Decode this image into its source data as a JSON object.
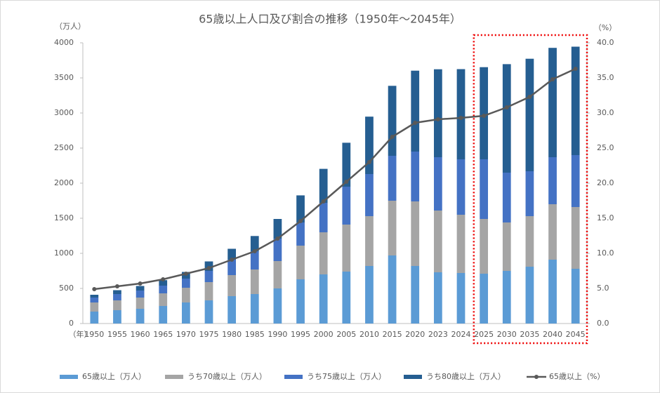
{
  "chart_data": {
    "type": "stacked_bar_line",
    "title": "65歳以上人口及び割合の推移（1950年～2045年）",
    "y_label": "（万人）",
    "y2_label": "（%）",
    "x_label": "（年）",
    "categories": [
      "1950",
      "1955",
      "1960",
      "1965",
      "1970",
      "1975",
      "1980",
      "1985",
      "1990",
      "1995",
      "2000",
      "2005",
      "2010",
      "2015",
      "2020",
      "2023",
      "2024",
      "2025",
      "2030",
      "2035",
      "2040",
      "2045"
    ],
    "ylim": [
      0,
      4000
    ],
    "yticks": [
      0,
      500,
      1000,
      1500,
      2000,
      2500,
      3000,
      3500,
      4000
    ],
    "y2lim": [
      0,
      40
    ],
    "y2ticks": [
      {
        "value": 0,
        "label": "0.0"
      },
      {
        "value": 5,
        "label": "5.0"
      },
      {
        "value": 10,
        "label": "10.0"
      },
      {
        "value": 15,
        "label": "15.0"
      },
      {
        "value": 20,
        "label": "20.0"
      },
      {
        "value": 25,
        "label": "25.0"
      },
      {
        "value": 30,
        "label": "30.0"
      },
      {
        "value": 35,
        "label": "35.0"
      },
      {
        "value": 40,
        "label": "40.0"
      }
    ],
    "series": [
      {
        "name": "65歳以上（万人）",
        "color": "#5b9bd5",
        "kind": "bar",
        "values": [
          170,
          190,
          210,
          250,
          300,
          330,
          390,
          420,
          500,
          630,
          700,
          740,
          820,
          970,
          820,
          730,
          720,
          710,
          750,
          810,
          910,
          780
        ]
      },
      {
        "name": "うち70歳以上（万人）",
        "color": "#a5a5a5",
        "kind": "bar",
        "values": [
          130,
          140,
          160,
          180,
          210,
          260,
          300,
          350,
          390,
          480,
          600,
          670,
          710,
          780,
          920,
          880,
          830,
          780,
          690,
          720,
          790,
          880
        ]
      },
      {
        "name": "うち75歳以上（万人）",
        "color": "#4472c4",
        "kind": "bar",
        "values": [
          70,
          90,
          100,
          110,
          130,
          160,
          220,
          260,
          320,
          330,
          420,
          540,
          600,
          640,
          710,
          760,
          790,
          850,
          710,
          640,
          670,
          740
        ]
      },
      {
        "name": "うち80歳以上（万人）",
        "color": "#255e91",
        "kind": "bar",
        "values": [
          40,
          55,
          65,
          78,
          95,
          135,
          155,
          217,
          280,
          386,
          484,
          626,
          818,
          997,
          1153,
          1253,
          1285,
          1313,
          1546,
          1603,
          1558,
          1545
        ]
      },
      {
        "name": "65歳以上（%）",
        "color": "#595959",
        "kind": "line",
        "axis": "y2",
        "values": [
          4.9,
          5.3,
          5.7,
          6.3,
          7.1,
          7.9,
          9.1,
          10.3,
          12.1,
          14.6,
          17.4,
          20.2,
          23.0,
          26.6,
          28.6,
          29.1,
          29.3,
          29.6,
          30.8,
          32.3,
          34.8,
          36.3
        ]
      }
    ]
  }
}
